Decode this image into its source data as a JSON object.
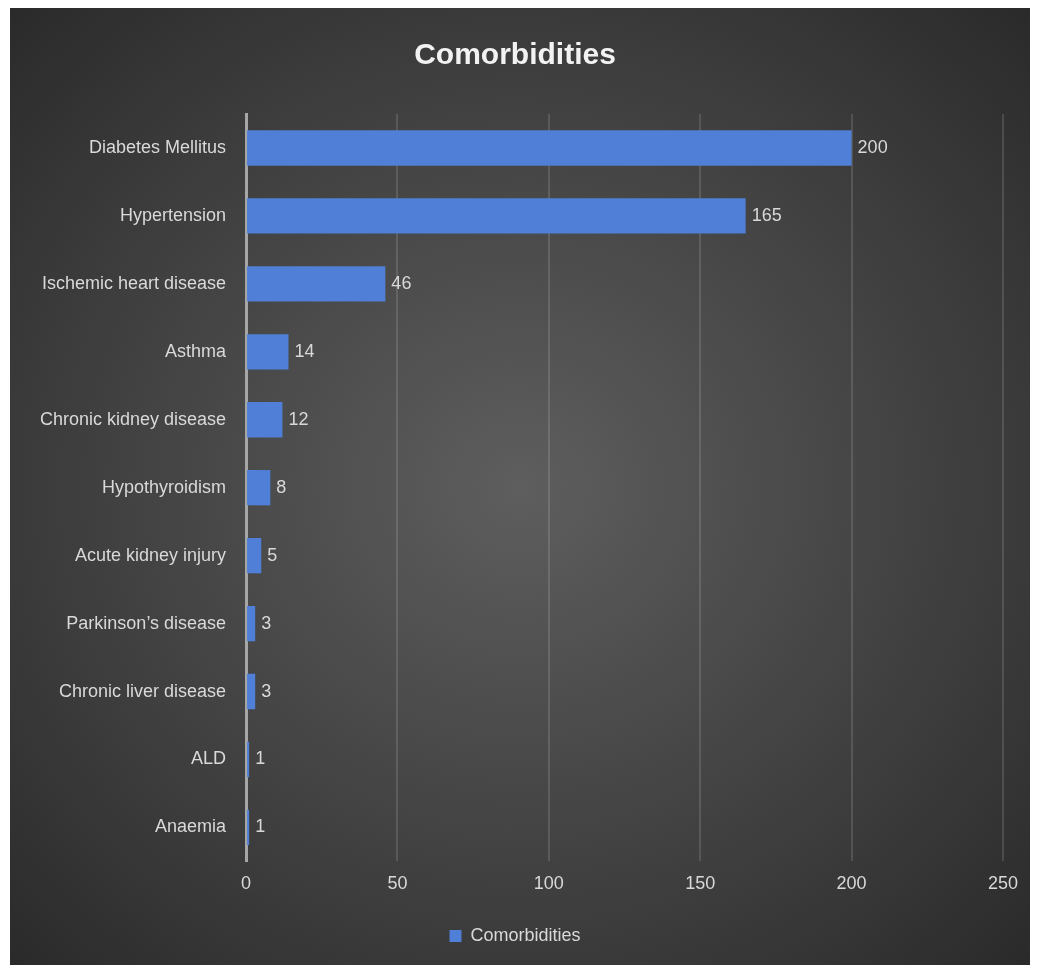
{
  "chart_data": {
    "type": "bar",
    "orientation": "horizontal",
    "title": "Comorbidities",
    "categories": [
      "Diabetes Mellitus",
      "Hypertension",
      "Ischemic heart disease",
      "Asthma",
      "Chronic kidney disease",
      "Hypothyroidism",
      "Acute kidney injury",
      "Parkinson’s disease",
      "Chronic liver disease",
      "ALD",
      "Anaemia"
    ],
    "series": [
      {
        "name": "Comorbidities",
        "color": "#4f7fd6",
        "values": [
          200,
          165,
          46,
          14,
          12,
          8,
          5,
          3,
          3,
          1,
          1
        ]
      }
    ],
    "xlim": [
      0,
      250
    ],
    "xticks": [
      0,
      50,
      100,
      150,
      200,
      250
    ],
    "grid": "x",
    "legend": "bottom",
    "data_labels": true
  }
}
